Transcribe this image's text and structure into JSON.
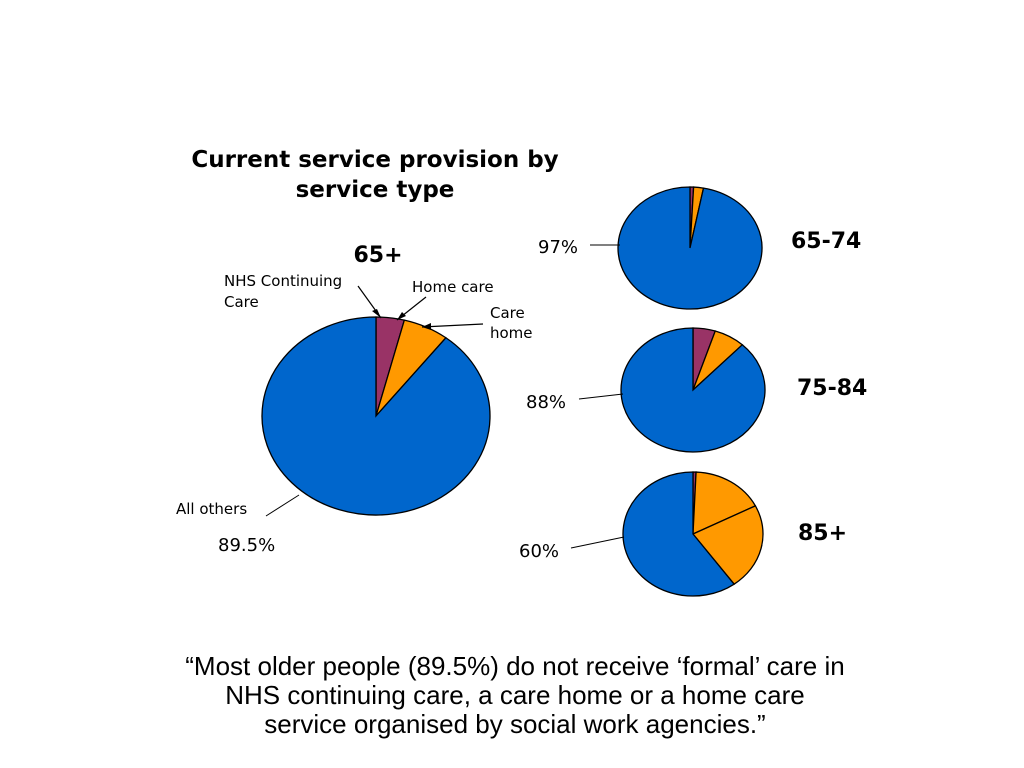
{
  "chart_data": [
    {
      "type": "pie",
      "title": "Current service provision by service type",
      "title_lines": [
        "Current service provision by",
        "service type"
      ],
      "group": "65+",
      "categories": [
        "NHS Continuing Care",
        "Home care",
        "Care home",
        "All others"
      ],
      "values": [
        4,
        6.5,
        0,
        89.5
      ],
      "category_labels": {
        "nhs": [
          "NHS Continuing",
          "Care"
        ],
        "home_care": [
          "Home care"
        ],
        "care_home": [
          "Care",
          "home"
        ],
        "all_others": [
          "All others"
        ]
      },
      "value_label": "89.5%"
    },
    {
      "type": "pie",
      "group": "65-74",
      "categories": [
        "NHS Continuing Care",
        "Home care",
        "All others"
      ],
      "values": [
        0.8,
        2.2,
        97
      ],
      "value_label": "97%"
    },
    {
      "type": "pie",
      "group": "75-84",
      "categories": [
        "NHS Continuing Care",
        "Home care",
        "All others"
      ],
      "values": [
        5,
        7,
        88
      ],
      "value_label": "88%"
    },
    {
      "type": "pie",
      "group": "85+",
      "categories": [
        "NHS Continuing Care",
        "Home care",
        "Care home",
        "All others"
      ],
      "values": [
        0.7,
        16.8,
        22.5,
        60
      ],
      "value_label": "60%"
    }
  ],
  "colors": {
    "nhs": "#993366",
    "home_care": "#FF9900",
    "all_others": "#0066CC",
    "outline": "#000000"
  },
  "quote": {
    "lines": [
      "“Most older people (89.5%) do not receive ‘formal’ care in",
      "NHS continuing care, a care home or a home care",
      "service organised by social work agencies.”"
    ]
  }
}
